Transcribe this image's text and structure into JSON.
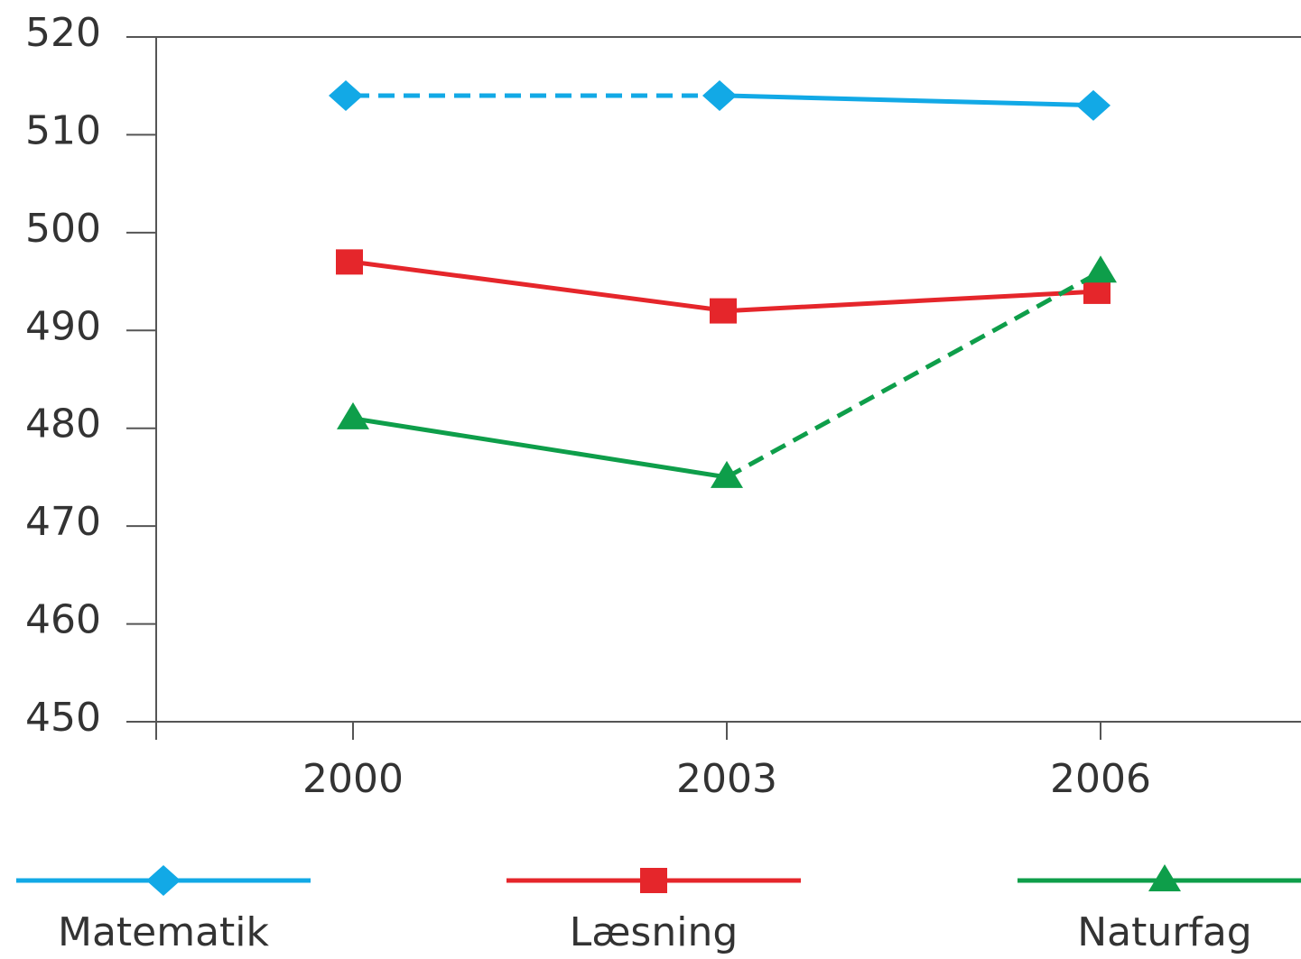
{
  "chart_data": {
    "type": "line",
    "categories": [
      "2000",
      "2003",
      "2006"
    ],
    "series": [
      {
        "name": "Matematik",
        "color": "#12a9e6",
        "marker": "diamond",
        "values": [
          514,
          514,
          513
        ],
        "dashed_segments": [
          0
        ]
      },
      {
        "name": "Læsning",
        "color": "#e5262b",
        "marker": "square",
        "values": [
          497,
          492,
          494
        ],
        "dashed_segments": []
      },
      {
        "name": "Naturfag",
        "color": "#0e9e4a",
        "marker": "triangle",
        "values": [
          481,
          475,
          496
        ],
        "dashed_segments": [
          1
        ]
      }
    ],
    "ylim": [
      450,
      520
    ],
    "yticks": [
      450,
      460,
      470,
      480,
      490,
      500,
      510,
      520
    ],
    "grid": false,
    "legend": "bottom"
  }
}
